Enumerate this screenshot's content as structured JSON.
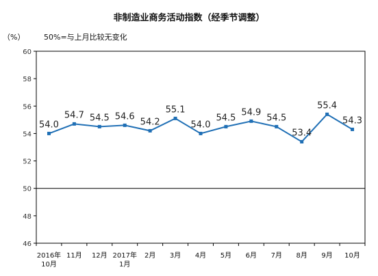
{
  "chart_data": {
    "type": "line",
    "title": "非制造业商务活动指数（经季节调整）",
    "unit_label": "（%）",
    "note": "50%=与上月比较无变化",
    "categories": [
      [
        "2016年",
        "10月"
      ],
      [
        "11月"
      ],
      [
        "12月"
      ],
      [
        "2017年",
        "1月"
      ],
      [
        "2月"
      ],
      [
        "3月"
      ],
      [
        "4月"
      ],
      [
        "5月"
      ],
      [
        "6月"
      ],
      [
        "7月"
      ],
      [
        "8月"
      ],
      [
        "9月"
      ],
      [
        "10月"
      ]
    ],
    "values": [
      54.0,
      54.7,
      54.5,
      54.6,
      54.2,
      55.1,
      54.0,
      54.5,
      54.9,
      54.5,
      53.4,
      55.4,
      54.3
    ],
    "data_labels": [
      "54.0",
      "54.7",
      "54.5",
      "54.6",
      "54.2",
      "55.1",
      "54.0",
      "54.5",
      "54.9",
      "54.5",
      "53.4",
      "55.4",
      "54.3"
    ],
    "ylim": [
      46,
      60
    ],
    "yticks": [
      46,
      48,
      50,
      52,
      54,
      56,
      58,
      60
    ],
    "reference_line": 50,
    "grid": false,
    "line_color": "#1f6fb5"
  }
}
